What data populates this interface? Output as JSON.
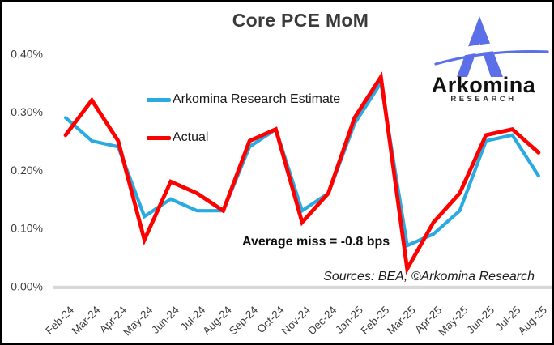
{
  "header": {
    "title": "Core PCE MoM"
  },
  "logo": {
    "brand": "Arkomina",
    "sub": "RESEARCH",
    "mark_color": "#5A6FE8",
    "mark_icon": "triangle-a-with-swoosh"
  },
  "annotations": {
    "average_miss": "Average miss = -0.8 bps",
    "sources": "Sources: BEA, ©Arkomina Research"
  },
  "colors": {
    "estimate_line": "#29ABE2",
    "actual_line": "#FF0000",
    "axis_baseline": "#D8D8D8",
    "tick_text": "#3d3d3d"
  },
  "chart_data": {
    "type": "line",
    "title": "Core PCE MoM",
    "xlabel": "",
    "ylabel": "",
    "unit": "percent (MoM)",
    "grid": false,
    "legend_position": "upper-left-inside",
    "ylim": [
      0.0,
      0.4
    ],
    "categories": [
      "Feb-24",
      "Mar-24",
      "Apr-24",
      "May-24",
      "Jun-24",
      "Jul-24",
      "Aug-24",
      "Sep-24",
      "Oct-24",
      "Nov-24",
      "Dec-24",
      "Jan-25",
      "Feb-25",
      "Mar-25",
      "Apr-25",
      "May-25",
      "Jun-25",
      "Jul-25",
      "Aug-25"
    ],
    "yticks": {
      "labels": [
        "0.40%",
        "0.30%",
        "0.20%",
        "0.10%",
        "0.00%"
      ],
      "values": [
        0.4,
        0.3,
        0.2,
        0.1,
        0.0
      ]
    },
    "series": [
      {
        "name": "Arkomina Research Estimate",
        "color": "#29ABE2",
        "values": [
          0.29,
          0.25,
          0.24,
          0.12,
          0.15,
          0.13,
          0.13,
          0.24,
          0.27,
          0.13,
          0.16,
          0.28,
          0.35,
          0.07,
          0.09,
          0.13,
          0.25,
          0.26,
          0.19
        ]
      },
      {
        "name": "Actual",
        "color": "#FF0000",
        "values": [
          0.26,
          0.32,
          0.25,
          0.08,
          0.18,
          0.16,
          0.13,
          0.25,
          0.27,
          0.11,
          0.16,
          0.29,
          0.36,
          0.03,
          0.11,
          0.16,
          0.26,
          0.27,
          0.23
        ]
      }
    ]
  }
}
